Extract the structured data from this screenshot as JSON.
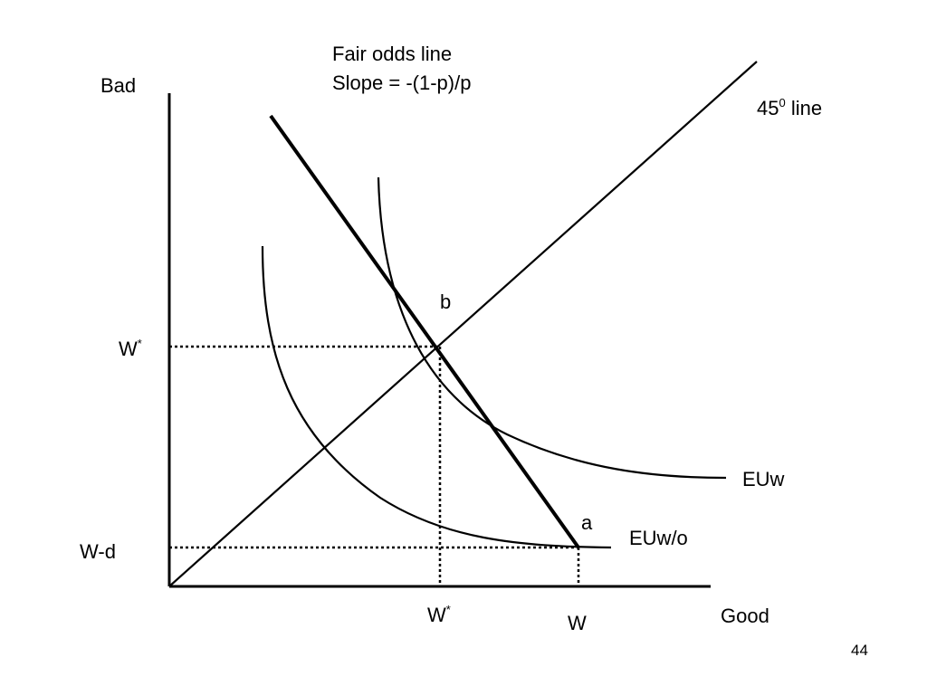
{
  "diagram": {
    "y_axis_label": "Bad",
    "x_axis_label": "Good",
    "fair_odds_title": "Fair odds line",
    "fair_odds_slope": "Slope = -(1-p)/p",
    "line45_base": "45",
    "line45_sup": "0",
    "line45_suffix": " line",
    "point_b": "b",
    "point_a": "a",
    "curve_with": "EUw",
    "curve_without": "EUw/o",
    "y_tick_wstar_base": "W",
    "y_tick_wstar_sup": "*",
    "y_tick_wd": "W-d",
    "x_tick_wstar_base": "W",
    "x_tick_wstar_sup": "*",
    "x_tick_w": "W"
  },
  "page_number": "44"
}
